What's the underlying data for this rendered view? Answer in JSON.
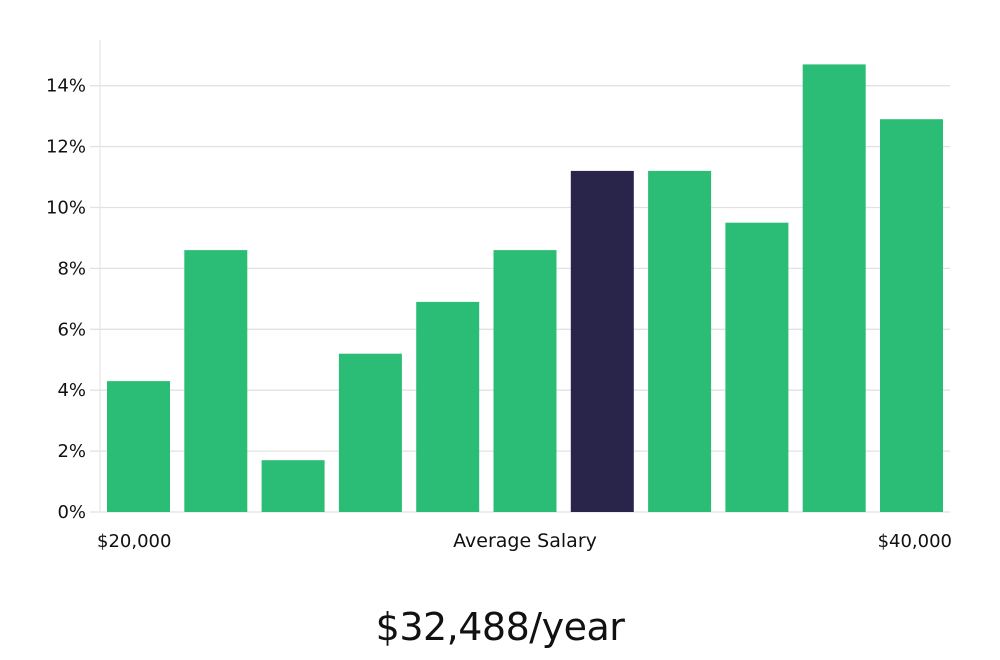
{
  "chart_data": {
    "type": "bar",
    "xlabel": "Average Salary",
    "x_range_labels": {
      "min": "$20,000",
      "max": "$40,000"
    },
    "ylim": [
      0,
      15.5
    ],
    "y_ticks": [
      0,
      2,
      4,
      6,
      8,
      10,
      12,
      14
    ],
    "y_tick_format": "%",
    "grid": true,
    "highlight_index": 6,
    "colors": {
      "bar": "#2bbd76",
      "highlight": "#29244a",
      "grid": "#e2e2e2"
    },
    "values": [
      4.3,
      8.6,
      1.7,
      5.2,
      6.9,
      8.6,
      11.2,
      11.2,
      9.5,
      14.7,
      12.9
    ]
  },
  "salary_text": "$32,488/year"
}
